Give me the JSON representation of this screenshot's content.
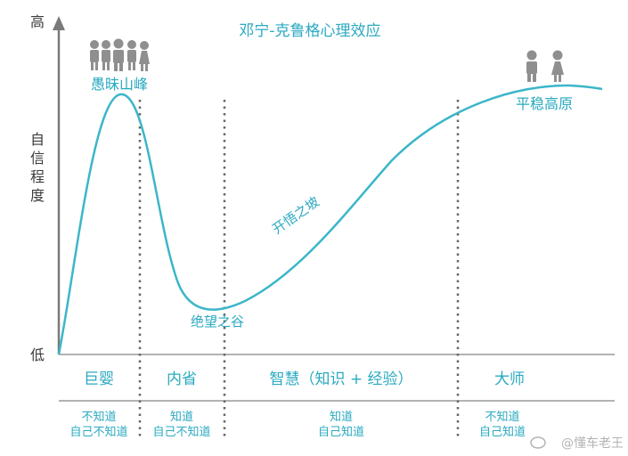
{
  "title": "邓宁-克鲁格心理效应",
  "y_axis": {
    "high_label": "高",
    "low_label": "低",
    "title_chars": [
      "自",
      "信",
      "程",
      "度"
    ]
  },
  "annotations": {
    "peak": "愚昧山峰",
    "valley": "绝望之谷",
    "slope": "开悟之坡",
    "plateau": "平稳高原"
  },
  "stages": [
    {
      "name": "巨婴",
      "desc_line1": "不知道",
      "desc_line2": "自己不知道"
    },
    {
      "name": "内省",
      "desc_line1": "知道",
      "desc_line2": "自己不知道"
    },
    {
      "name": "智慧（知识 + 经验）",
      "desc_line1": "知道",
      "desc_line2": "自己知道"
    },
    {
      "name": "大师",
      "desc_line1": "不知道",
      "desc_line2": "自己知道"
    }
  ],
  "watermark": "@懂车老王",
  "colors": {
    "curve": "#3bb6c9",
    "text_blue": "#2aa9c0",
    "axis": "#7a7a7a",
    "divider": "#666666"
  }
}
